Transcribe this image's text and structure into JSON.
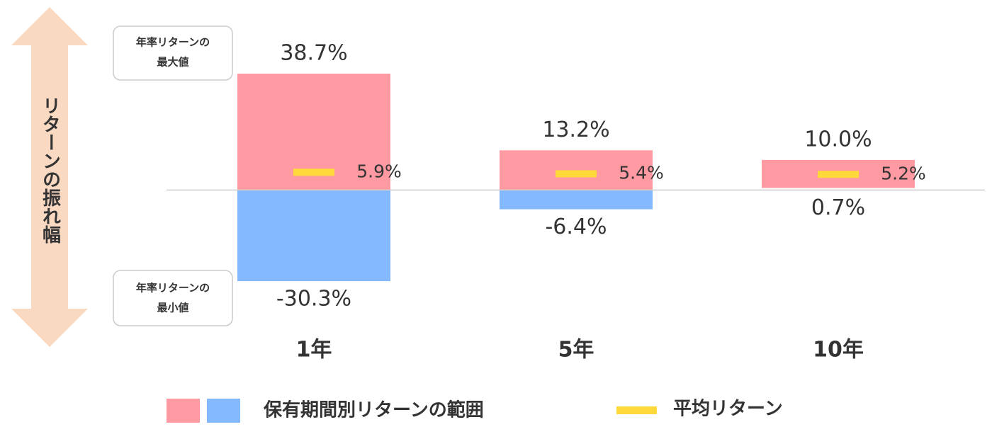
{
  "chart_data": {
    "type": "range",
    "y_label": "リターンの振れ幅",
    "categories": [
      "1年",
      "5年",
      "10年"
    ],
    "ylim": [
      -35,
      42
    ],
    "range": {
      "name": "保有期間別リターンの範囲",
      "positive_color": "#ff9aa2",
      "negative_color": "#85b9ff",
      "max": {
        "callout": [
          "年率リターンの",
          "最大値"
        ],
        "values": [
          38.7,
          13.2,
          10.0
        ],
        "value_labels": [
          "38.7%",
          "13.2%",
          "10.0%"
        ]
      },
      "min": {
        "callout": [
          "年率リターンの",
          "最小値"
        ],
        "values": [
          -30.3,
          -6.4,
          0.7
        ],
        "value_labels": [
          "-30.3%",
          "-6.4%",
          "0.7%"
        ]
      }
    },
    "average": {
      "name": "平均リターン",
      "color": "#ffd83a",
      "values": [
        5.9,
        5.4,
        5.2
      ],
      "value_labels": [
        "5.9%",
        "5.4%",
        "5.2%"
      ]
    }
  }
}
